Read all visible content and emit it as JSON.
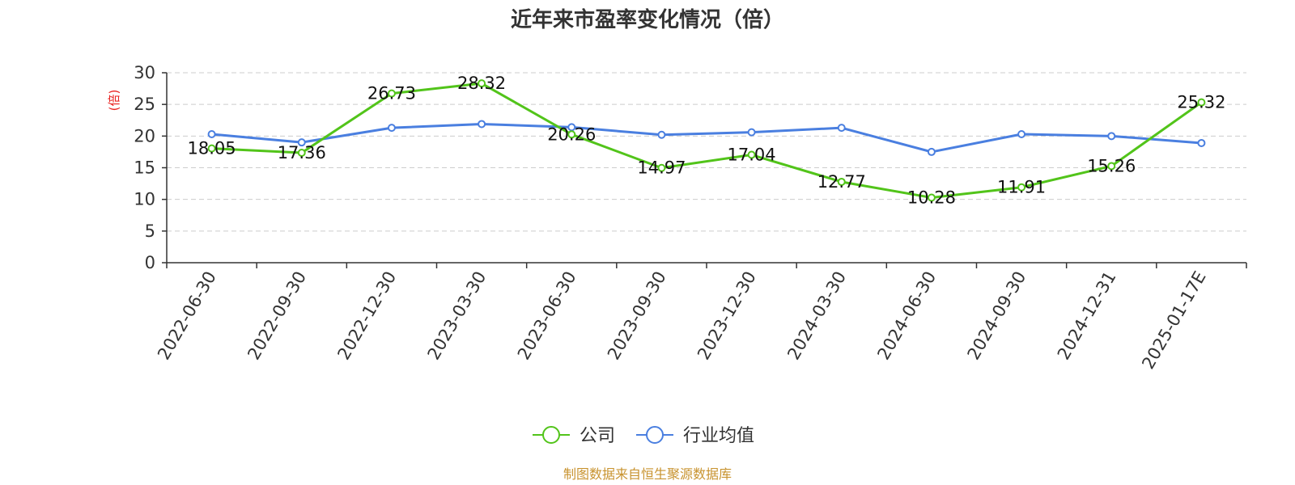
{
  "colors": {
    "company": "#52c41a",
    "industry": "#4a7fe0",
    "ylabel": "#e8201e",
    "source": "#c8932f",
    "grid": "#cccccc",
    "axis": "#333333"
  },
  "footer": {
    "source": "制图数据来自恒生聚源数据库"
  },
  "chart_data": {
    "type": "line",
    "title": "近年来市盈率变化情况（倍）",
    "ylabel": "(倍)",
    "xlabel": "",
    "ylim": [
      0,
      30
    ],
    "yticks": [
      0,
      5,
      10,
      15,
      20,
      25,
      30
    ],
    "grid": true,
    "legend_position": "bottom-center",
    "categories": [
      "2022-06-30",
      "2022-09-30",
      "2022-12-30",
      "2023-03-30",
      "2023-06-30",
      "2023-09-30",
      "2023-12-30",
      "2024-03-30",
      "2024-06-30",
      "2024-09-30",
      "2024-12-31",
      "2025-01-17E"
    ],
    "series": [
      {
        "name": "公司",
        "color": "#52c41a",
        "values": [
          18.05,
          17.36,
          26.73,
          28.32,
          20.26,
          14.97,
          17.04,
          12.77,
          10.28,
          11.91,
          15.26,
          25.32
        ],
        "labels": [
          "18.05",
          "17.36",
          "26.73",
          "28.32",
          "20.26",
          "14.97",
          "17.04",
          "12.77",
          "10.28",
          "11.91",
          "15.26",
          "25.32"
        ]
      },
      {
        "name": "行业均值",
        "color": "#4a7fe0",
        "values": [
          20.3,
          19.0,
          21.3,
          21.9,
          21.4,
          20.2,
          20.6,
          21.3,
          17.5,
          20.3,
          20.0,
          18.9
        ]
      }
    ]
  }
}
